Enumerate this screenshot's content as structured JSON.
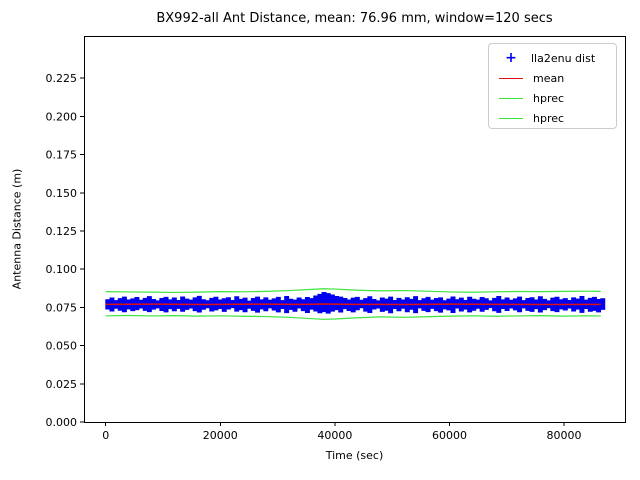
{
  "title": "BX992-all Ant Distance, mean: 76.96 mm, window=120 secs",
  "axes": {
    "xlabel": "Time (sec)",
    "ylabel": "Antenna Distance (m)",
    "x_ticks": {
      "labels": [
        "0",
        "20000",
        "40000",
        "60000",
        "80000"
      ],
      "values": [
        0,
        20000,
        40000,
        60000,
        80000
      ]
    },
    "y_ticks": {
      "labels": [
        "0.000",
        "0.025",
        "0.050",
        "0.075",
        "0.100",
        "0.125",
        "0.150",
        "0.175",
        "0.200",
        "0.225"
      ],
      "values": [
        0,
        0.025,
        0.05,
        0.075,
        0.1,
        0.125,
        0.15,
        0.175,
        0.2,
        0.225
      ]
    },
    "xlim": [
      -3790,
      90640
    ],
    "ylim": [
      0,
      0.2526
    ]
  },
  "legend": {
    "items": [
      {
        "label": "lla2enu dist",
        "type": "marker",
        "symbol": "+",
        "color": "#0000ee"
      },
      {
        "label": "mean",
        "type": "line",
        "color": "#dd1111"
      },
      {
        "label": "hprec",
        "type": "line",
        "color": "#3ce43c"
      },
      {
        "label": "hprec",
        "type": "line",
        "color": "#3ce43c"
      }
    ]
  },
  "chart_data": {
    "type": "line",
    "title": "BX992-all Ant Distance, mean: 76.96 mm, window=120 secs",
    "xlabel": "Time (sec)",
    "ylabel": "Antenna Distance (m)",
    "xlim": [
      -3790,
      90640
    ],
    "ylim": [
      0,
      0.2526
    ],
    "grid": false,
    "legend_position": "upper right",
    "mean_m": 0.07696,
    "mean_mm": 76.96,
    "window_secs": 120,
    "series": [
      {
        "name": "lla2enu dist",
        "render": "band",
        "color": "#0000ee",
        "x_start": 0,
        "x_step": 726,
        "upper": [
          0.0801,
          0.0812,
          0.0795,
          0.0808,
          0.0818,
          0.0799,
          0.0806,
          0.0815,
          0.0797,
          0.081,
          0.0821,
          0.0802,
          0.0793,
          0.0809,
          0.0816,
          0.08,
          0.0812,
          0.0796,
          0.0819,
          0.0805,
          0.0798,
          0.0813,
          0.0823,
          0.0801,
          0.0794,
          0.081,
          0.0817,
          0.0799,
          0.0807,
          0.0814,
          0.0796,
          0.082,
          0.0803,
          0.0811,
          0.0792,
          0.0809,
          0.0818,
          0.08,
          0.0813,
          0.0797,
          0.0806,
          0.0816,
          0.0795,
          0.0822,
          0.0804,
          0.0798,
          0.0812,
          0.0801,
          0.0815,
          0.0808,
          0.0825,
          0.0836,
          0.0848,
          0.0841,
          0.0832,
          0.0822,
          0.0818,
          0.0809,
          0.0799,
          0.0811,
          0.0816,
          0.0797,
          0.0808,
          0.082,
          0.0802,
          0.0793,
          0.0812,
          0.0805,
          0.0818,
          0.0796,
          0.081,
          0.0799,
          0.0814,
          0.0803,
          0.0821,
          0.0795,
          0.0807,
          0.0816,
          0.0798,
          0.0809,
          0.0813,
          0.0794,
          0.0805,
          0.0819,
          0.0801,
          0.0811,
          0.0796,
          0.0817,
          0.0804,
          0.0798,
          0.0815,
          0.0807,
          0.0793,
          0.081,
          0.0822,
          0.08,
          0.0812,
          0.0797,
          0.0806,
          0.0818,
          0.0795,
          0.0809,
          0.0814,
          0.0799,
          0.082,
          0.0803,
          0.0793,
          0.0811,
          0.0817,
          0.0801,
          0.0808,
          0.0796,
          0.0813,
          0.0805,
          0.0822,
          0.0798,
          0.081,
          0.0816,
          0.0802,
          0.0807
        ],
        "lower": [
          0.0739,
          0.0726,
          0.0744,
          0.0731,
          0.0721,
          0.074,
          0.0728,
          0.0735,
          0.0745,
          0.073,
          0.0722,
          0.0738,
          0.0746,
          0.0729,
          0.072,
          0.0741,
          0.0727,
          0.0743,
          0.0724,
          0.0736,
          0.0745,
          0.0728,
          0.0719,
          0.0737,
          0.0747,
          0.0726,
          0.0733,
          0.0742,
          0.0723,
          0.0739,
          0.0748,
          0.0725,
          0.0735,
          0.0721,
          0.0744,
          0.073,
          0.0718,
          0.074,
          0.0727,
          0.0746,
          0.0732,
          0.072,
          0.0742,
          0.0715,
          0.0736,
          0.0724,
          0.0745,
          0.0728,
          0.0716,
          0.0738,
          0.0726,
          0.0714,
          0.0722,
          0.0712,
          0.0725,
          0.0735,
          0.0719,
          0.0741,
          0.0729,
          0.072,
          0.0734,
          0.0747,
          0.0725,
          0.0716,
          0.0739,
          0.0745,
          0.0723,
          0.0731,
          0.0714,
          0.0742,
          0.0727,
          0.0744,
          0.0721,
          0.0737,
          0.0715,
          0.0746,
          0.073,
          0.0722,
          0.0743,
          0.0728,
          0.0718,
          0.074,
          0.0733,
          0.0716,
          0.0745,
          0.0726,
          0.0738,
          0.072,
          0.0731,
          0.0744,
          0.0724,
          0.0736,
          0.0748,
          0.0727,
          0.0717,
          0.0742,
          0.0729,
          0.0745,
          0.0733,
          0.0721,
          0.0746,
          0.073,
          0.0723,
          0.0741,
          0.0719,
          0.0735,
          0.0747,
          0.0728,
          0.0722,
          0.074,
          0.0732,
          0.0745,
          0.0726,
          0.0738,
          0.0717,
          0.0742,
          0.0724,
          0.073,
          0.072,
          0.0736
        ]
      },
      {
        "name": "mean",
        "render": "line",
        "color": "#dd1111",
        "width": 1.5,
        "x": [
          0,
          8640,
          17280,
          25920,
          34560,
          38000,
          43200,
          51840,
          60480,
          69120,
          77760,
          86400
        ],
        "y": [
          0.077,
          0.0771,
          0.0769,
          0.0771,
          0.077,
          0.0772,
          0.077,
          0.0769,
          0.0771,
          0.077,
          0.0769,
          0.077
        ]
      },
      {
        "name": "hprec",
        "render": "line",
        "color": "#3ce43c",
        "width": 1.2,
        "x": [
          0,
          4000,
          8000,
          12000,
          16000,
          20000,
          24000,
          28000,
          32000,
          36000,
          38000,
          40000,
          44000,
          48000,
          52000,
          56000,
          60000,
          64000,
          68000,
          72000,
          76000,
          80000,
          84000,
          86400
        ],
        "y": [
          0.0853,
          0.0851,
          0.085,
          0.0848,
          0.085,
          0.0853,
          0.0852,
          0.0855,
          0.086,
          0.0868,
          0.0872,
          0.087,
          0.0862,
          0.0858,
          0.086,
          0.0856,
          0.0851,
          0.0849,
          0.0852,
          0.0854,
          0.0853,
          0.0855,
          0.0856,
          0.0855
        ]
      },
      {
        "name": "hprec",
        "render": "line",
        "color": "#3ce43c",
        "width": 1.2,
        "x": [
          0,
          4000,
          8000,
          12000,
          16000,
          20000,
          24000,
          28000,
          32000,
          36000,
          38000,
          40000,
          44000,
          48000,
          52000,
          56000,
          60000,
          64000,
          68000,
          72000,
          76000,
          80000,
          84000,
          86400
        ],
        "y": [
          0.0695,
          0.0697,
          0.0694,
          0.0696,
          0.0693,
          0.0695,
          0.0692,
          0.069,
          0.0685,
          0.0676,
          0.0672,
          0.0674,
          0.0682,
          0.0688,
          0.0685,
          0.0689,
          0.0693,
          0.0695,
          0.0692,
          0.0694,
          0.0696,
          0.0693,
          0.0695,
          0.0694
        ]
      }
    ]
  }
}
